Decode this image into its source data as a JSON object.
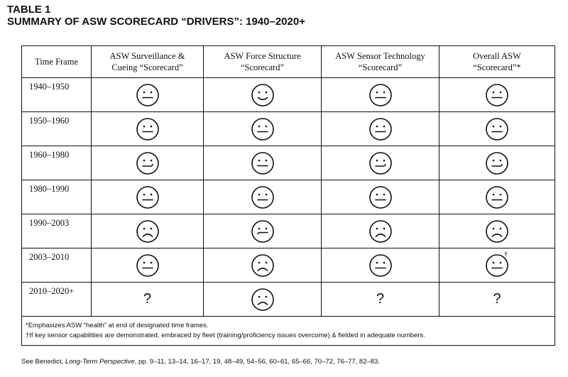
{
  "title": {
    "line1": "TABLE 1",
    "line2": "SUMMARY OF ASW SCORECARD “DRIVERS”: 1940–2020+"
  },
  "headers": [
    {
      "line1": "Time Frame",
      "line2": ""
    },
    {
      "line1": "ASW Surveillance &",
      "line2": "Cueing “Scorecard”"
    },
    {
      "line1": "ASW Force Structure",
      "line2": "“Scorecard”"
    },
    {
      "line1": "ASW Sensor Technology",
      "line2": "“Scorecard”"
    },
    {
      "line1": "Overall ASW",
      "line2": "“Scorecard”*"
    }
  ],
  "rows": [
    {
      "frame": "1940–1950",
      "cells": [
        "neutral",
        "smile",
        "neutral",
        "neutral"
      ]
    },
    {
      "frame": "1950–1960",
      "cells": [
        "neutral",
        "neutral",
        "neutral",
        "neutral"
      ]
    },
    {
      "frame": "1960–1980",
      "cells": [
        "half-smile",
        "neutral",
        "half-smile",
        "half-smile"
      ]
    },
    {
      "frame": "1980–1990",
      "cells": [
        "neutral",
        "neutral",
        "neutral",
        "neutral"
      ]
    },
    {
      "frame": "1990–2003",
      "cells": [
        "frown",
        "half-frown",
        "frown",
        "frown"
      ]
    },
    {
      "frame": "2003–2010",
      "cells": [
        "neutral",
        "frown",
        "neutral",
        "neutral"
      ]
    },
    {
      "frame": "2010–2020+",
      "cells": [
        "?",
        "frown",
        "?",
        "?"
      ]
    }
  ],
  "dagger": "†",
  "notes": [
    "*Emphasizes ASW “health” at end of designated time frames.",
    "†If key sensor capabilities are demonstrated, embraced by fleet (training/proficiency issues overcome) & fielded in adequate numbers."
  ],
  "source": {
    "prefix": "See Benedict, ",
    "italic": "Long-Term Perspective",
    "suffix": ", pp. 9–11, 13–14, 16–17, 19, 48–49, 54–56, 60–61, 65–66, 70–72, 76–77, 82–83."
  }
}
